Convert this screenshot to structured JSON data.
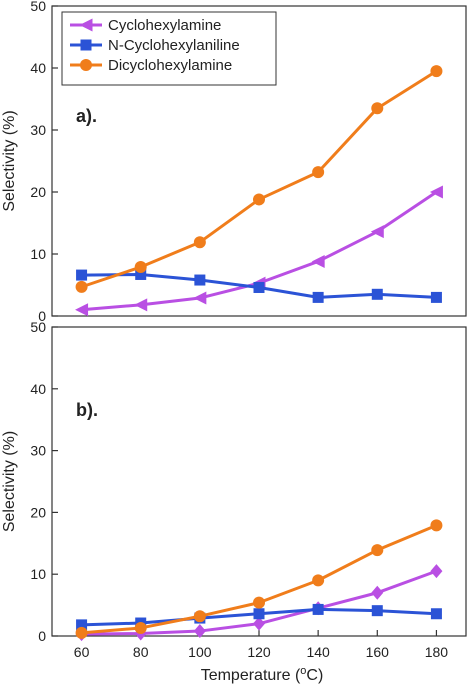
{
  "figure": {
    "xlabel": "Temperature (",
    "xlabel_sup": "o",
    "xlabel_end": "C)"
  },
  "legend": [
    {
      "name": "Cyclohexylamine",
      "color": "#b94fe3",
      "marker": "left-triangle"
    },
    {
      "name": "N-Cyclohexylaniline",
      "color": "#2b53d6",
      "marker": "square"
    },
    {
      "name": "Dicyclohexylamine",
      "color": "#f07d1b",
      "marker": "circle"
    }
  ],
  "chart_data": [
    {
      "type": "line",
      "panel_label": "a).",
      "xlabel": "Temperature (oC)",
      "ylabel": "Selectivity (%)",
      "x": [
        60,
        80,
        100,
        120,
        140,
        160,
        180
      ],
      "xticks": [
        "60",
        "80",
        "100",
        "120",
        "140",
        "160",
        "180"
      ],
      "yticks": [
        "0",
        "10",
        "20",
        "30",
        "40",
        "50"
      ],
      "xlim": [
        50,
        190
      ],
      "ylim": [
        0,
        50
      ],
      "grid": false,
      "legend_position": "top-left",
      "series": [
        {
          "name": "Cyclohexylamine",
          "color": "#b94fe3",
          "marker": "left-triangle",
          "values": [
            1.0,
            1.8,
            2.9,
            5.3,
            8.8,
            13.6,
            20.0
          ]
        },
        {
          "name": "N-Cyclohexylaniline",
          "color": "#2b53d6",
          "marker": "square",
          "values": [
            6.6,
            6.7,
            5.8,
            4.6,
            3.0,
            3.5,
            3.0
          ]
        },
        {
          "name": "Dicyclohexylamine",
          "color": "#f07d1b",
          "marker": "circle",
          "values": [
            4.7,
            7.9,
            11.9,
            18.8,
            23.2,
            33.5,
            39.5
          ]
        }
      ]
    },
    {
      "type": "line",
      "panel_label": "b).",
      "xlabel": "Temperature (oC)",
      "ylabel": "Selectivity (%)",
      "x": [
        60,
        80,
        100,
        120,
        140,
        160,
        180
      ],
      "xticks": [
        "60",
        "80",
        "100",
        "120",
        "140",
        "160",
        "180"
      ],
      "yticks": [
        "0",
        "10",
        "20",
        "30",
        "40",
        "50"
      ],
      "xlim": [
        50,
        190
      ],
      "ylim": [
        0,
        50
      ],
      "grid": false,
      "series": [
        {
          "name": "Cyclohexylamine",
          "color": "#b94fe3",
          "marker": "diamond",
          "values": [
            0.3,
            0.4,
            0.8,
            2.0,
            4.5,
            7.0,
            10.5
          ]
        },
        {
          "name": "N-Cyclohexylaniline",
          "color": "#2b53d6",
          "marker": "square",
          "values": [
            1.8,
            2.1,
            2.9,
            3.6,
            4.3,
            4.1,
            3.6
          ]
        },
        {
          "name": "Dicyclohexylamine",
          "color": "#f07d1b",
          "marker": "circle",
          "values": [
            0.5,
            1.3,
            3.2,
            5.4,
            9.0,
            13.9,
            17.9
          ]
        }
      ]
    }
  ]
}
